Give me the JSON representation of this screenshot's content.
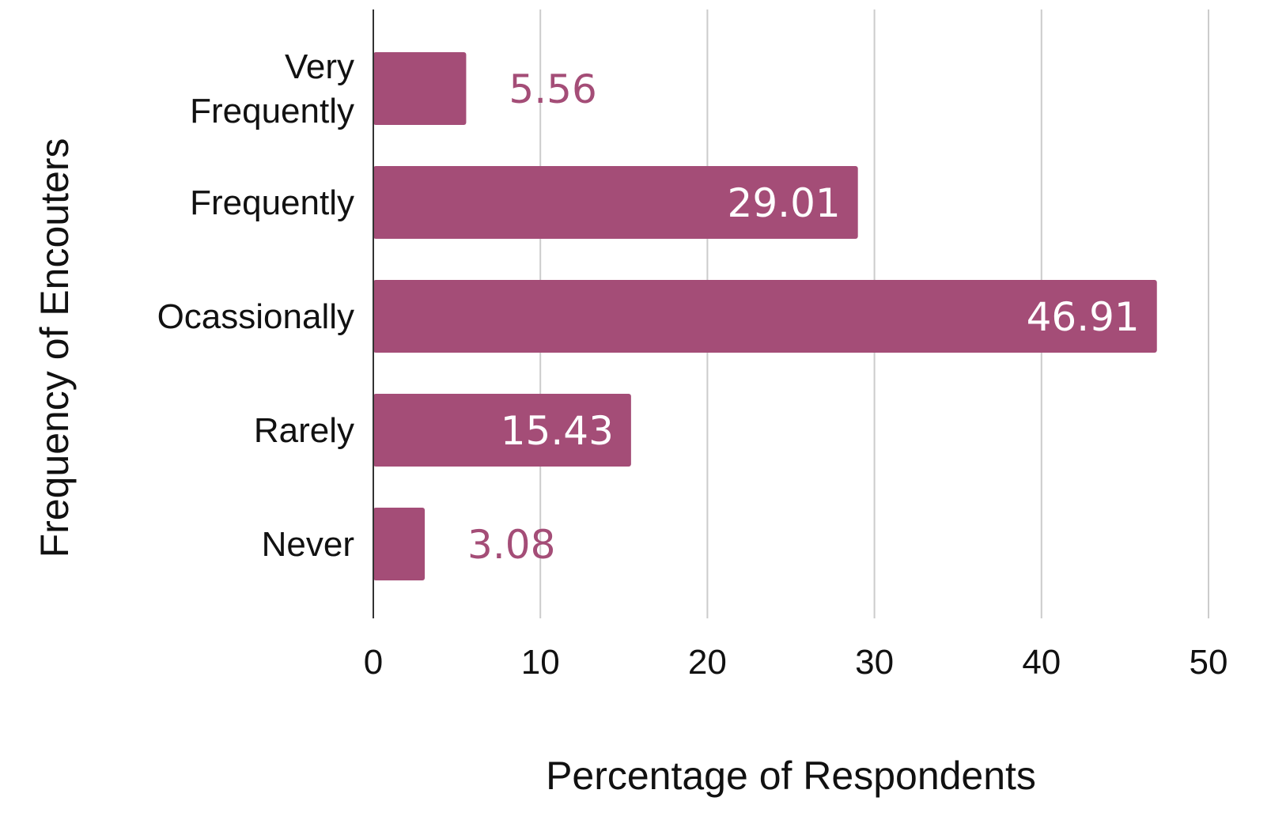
{
  "chart_data": {
    "type": "bar",
    "orientation": "horizontal",
    "categories": [
      "Very Frequently",
      "Frequently",
      "Ocassionally",
      "Rarely",
      "Never"
    ],
    "category_lines": [
      [
        "Very",
        "Frequently"
      ],
      [
        "Frequently"
      ],
      [
        "Ocassionally"
      ],
      [
        "Rarely"
      ],
      [
        "Never"
      ]
    ],
    "series": [
      {
        "values": [
          5.56,
          29.01,
          46.91,
          15.43,
          3.08
        ]
      }
    ],
    "data_labels": [
      "5.56",
      "29.01",
      "46.91",
      "15.43",
      "3.08"
    ],
    "xlabel": "Percentage of Respondents",
    "ylabel": "Frequency of Encouters",
    "xlim": [
      0,
      50
    ],
    "xticks": [
      0,
      10,
      20,
      30,
      40,
      50
    ],
    "grid": true,
    "colors": {
      "bar": "#a44d77",
      "label_inside": "#ffffff",
      "label_outside": "#a44d77",
      "gridline": "#cccccc",
      "axis": "#333333"
    }
  }
}
